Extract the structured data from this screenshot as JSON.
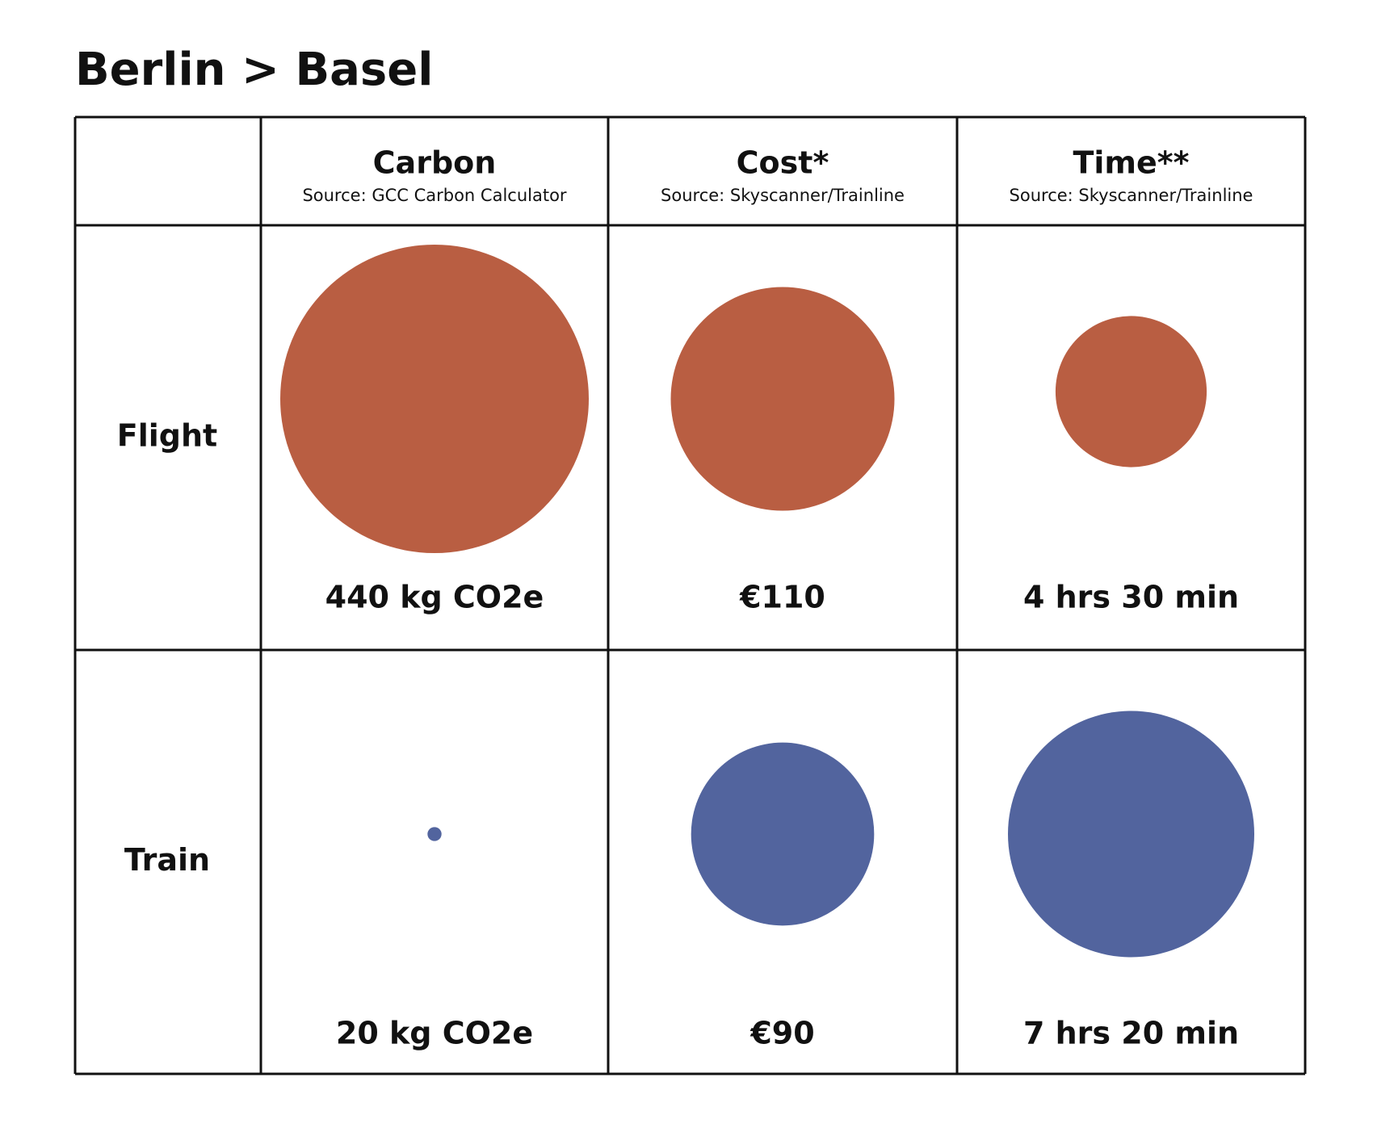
{
  "title": "Berlin > Basel",
  "columns": [
    {
      "name": "Carbon",
      "source": "Source: GCC Carbon Calculator"
    },
    {
      "name": "Cost*",
      "source": "Source: Skyscanner/Trainline"
    },
    {
      "name": "Time**",
      "source": "Source: Skyscanner/Trainline"
    }
  ],
  "rows": [
    {
      "name": "Flight",
      "color": "#b95e42",
      "values": [
        440,
        110,
        270
      ],
      "value_labels": [
        "440 kg CO2e",
        "€110",
        "4 hrs 30 min"
      ]
    },
    {
      "name": "Train",
      "color": "#52649e",
      "values": [
        20,
        90,
        440
      ],
      "value_labels": [
        "20 kg CO2e",
        "€90",
        "7 hrs 20 min"
      ]
    }
  ]
}
